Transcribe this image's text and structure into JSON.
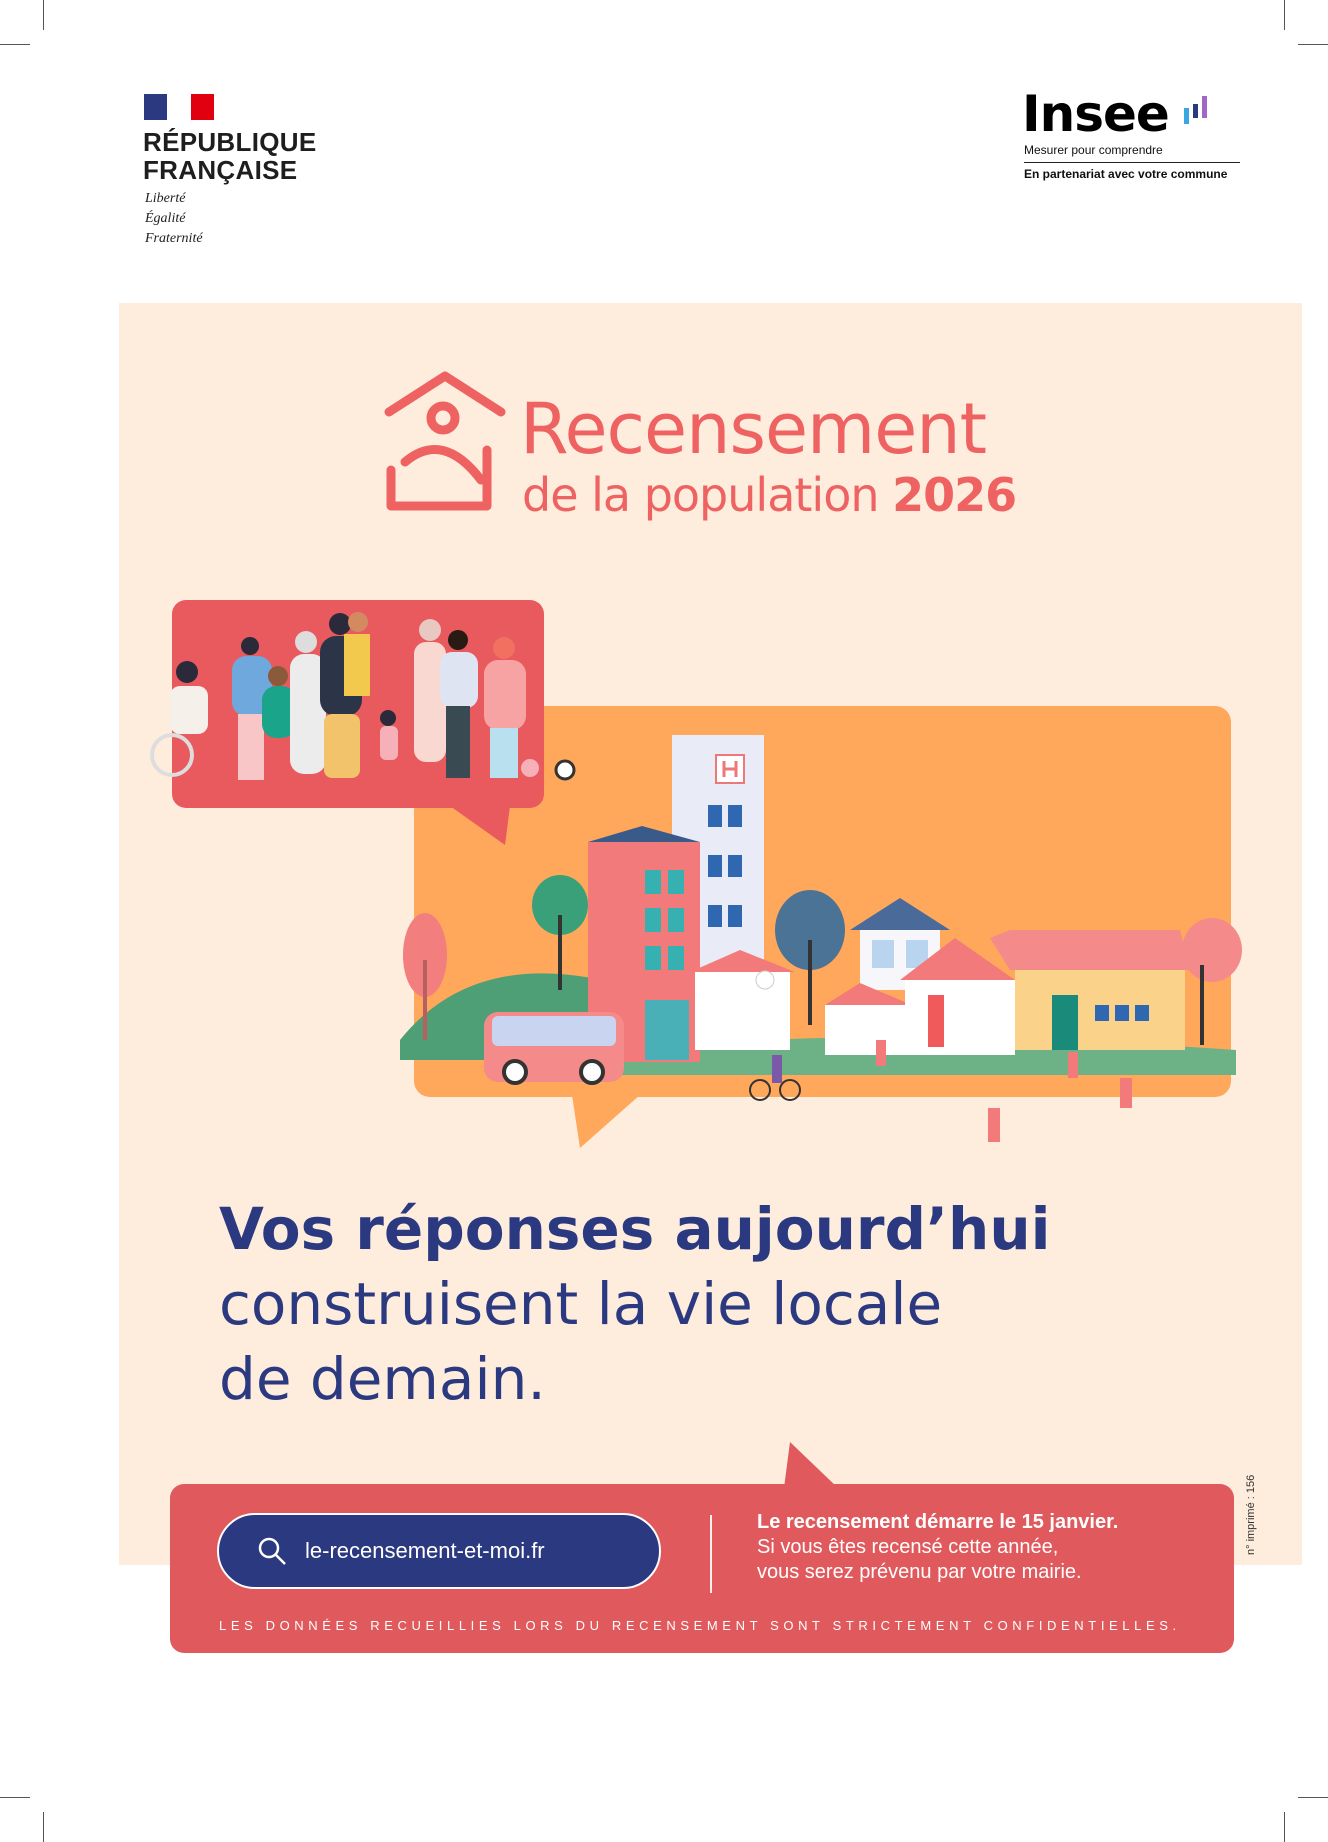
{
  "header": {
    "republique": {
      "line1": "RÉPUBLIQUE",
      "line2": "FRANÇAISE",
      "motto": [
        "Liberté",
        "Égalité",
        "Fraternité"
      ]
    },
    "insee": {
      "name": "Insee",
      "tagline": "Mesurer pour comprendre",
      "partnership": "En partenariat avec votre commune"
    }
  },
  "campaign": {
    "title": "Recensement",
    "subtitle": "de la population",
    "year": "2026"
  },
  "headline": {
    "bold": "Vos réponses aujourd’hui",
    "line2": "construisent la vie locale",
    "line3": "de demain."
  },
  "banner": {
    "search_url": "le-recensement-et-moi.fr",
    "search_icon": "search-icon",
    "start_info": "Le recensement démarre le 15 janvier.",
    "info_line2": "Si vous êtes recensé cette année,",
    "info_line3": "vous serez prévenu par votre mairie.",
    "confidentiality": "LES DONNÉES RECUEILLIES LORS DU RECENSEMENT SONT STRICTEMENT CONFIDENTIELLES."
  },
  "print_number": "n° imprimé : 156",
  "colors": {
    "navy": "#2b3a80",
    "coral": "#e05a5d",
    "orange": "#ffa85c",
    "cream": "#feeddd",
    "title": "#ee6262"
  }
}
